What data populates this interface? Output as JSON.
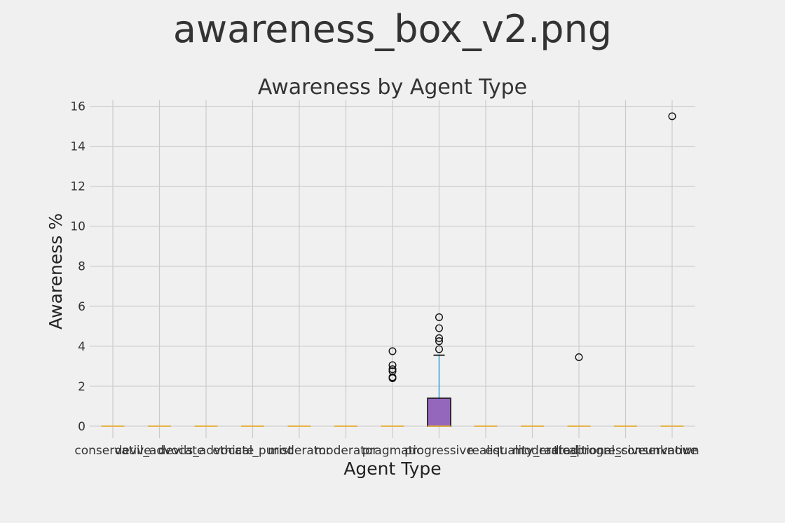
{
  "figure_title": "awareness_box_v2.png",
  "colors": {
    "background": "#f0f0f0",
    "grid": "#cbcbcb",
    "box_fill": "#9467bd",
    "median": "#e5ae38",
    "whisker": "#30a2da",
    "text": "#333333"
  },
  "chart_data": {
    "type": "box",
    "title": "Awareness by Agent Type",
    "xlabel": "Agent Type",
    "ylabel": "Awareness %",
    "ylim": [
      -0.6,
      16.3
    ],
    "yticks": [
      0,
      2,
      4,
      6,
      8,
      10,
      12,
      14,
      16
    ],
    "grid": true,
    "categories": [
      "conservative",
      "devil_advocate",
      "devils_advocate",
      "ethical_purist",
      "moderator",
      "moderator",
      "pragmatic",
      "progressive",
      "realist",
      "equality_radical",
      "moderate_progressive",
      "traditional_conservative",
      "unknown"
    ],
    "series": [
      {
        "min": 0,
        "q1": 0,
        "median": 0,
        "q3": 0,
        "max": 0,
        "outliers": []
      },
      {
        "min": 0,
        "q1": 0,
        "median": 0,
        "q3": 0,
        "max": 0,
        "outliers": []
      },
      {
        "min": 0,
        "q1": 0,
        "median": 0,
        "q3": 0,
        "max": 0,
        "outliers": []
      },
      {
        "min": 0,
        "q1": 0,
        "median": 0,
        "q3": 0,
        "max": 0,
        "outliers": []
      },
      {
        "min": 0,
        "q1": 0,
        "median": 0,
        "q3": 0,
        "max": 0,
        "outliers": []
      },
      {
        "min": 0,
        "q1": 0,
        "median": 0,
        "q3": 0,
        "max": 0,
        "outliers": []
      },
      {
        "min": 0,
        "q1": 0,
        "median": 0,
        "q3": 0,
        "max": 0,
        "outliers": [
          2.4,
          2.45,
          2.75,
          2.85,
          3.05,
          3.75
        ]
      },
      {
        "min": 0,
        "q1": 0,
        "median": 0,
        "q3": 1.4,
        "max": 3.55,
        "outliers": [
          3.85,
          4.25,
          4.4,
          4.9,
          5.45
        ]
      },
      {
        "min": 0,
        "q1": 0,
        "median": 0,
        "q3": 0,
        "max": 0,
        "outliers": []
      },
      {
        "min": 0,
        "q1": 0,
        "median": 0,
        "q3": 0,
        "max": 0,
        "outliers": []
      },
      {
        "min": 0,
        "q1": 0,
        "median": 0,
        "q3": 0,
        "max": 0,
        "outliers": [
          3.45
        ]
      },
      {
        "min": 0,
        "q1": 0,
        "median": 0,
        "q3": 0,
        "max": 0,
        "outliers": []
      },
      {
        "min": 0,
        "q1": 0,
        "median": 0,
        "q3": 0,
        "max": 0,
        "outliers": [
          15.5
        ]
      }
    ]
  }
}
